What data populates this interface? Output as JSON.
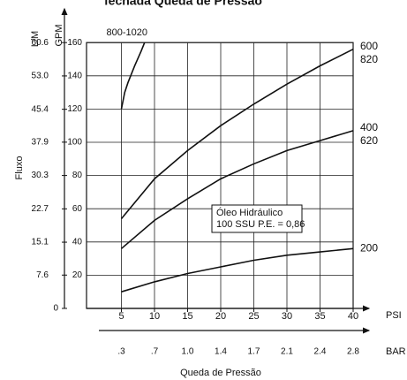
{
  "chart_data": {
    "type": "line",
    "title": "fechada Queda de Pressão",
    "y_label": "Fluxo",
    "y_unit": "GPM",
    "y2_unit": "L/M",
    "x_unit": "PSI",
    "x2_unit": "BAR",
    "x_label": "Queda de Pressão",
    "xlim": [
      0,
      40
    ],
    "xticks": [
      5,
      10,
      15,
      20,
      25,
      30,
      35,
      40
    ],
    "x2_labels": [
      ".3",
      ".7",
      "1.0",
      "1.4",
      "1.7",
      "2.1",
      "2.4",
      "2.8"
    ],
    "ylim": [
      0,
      160
    ],
    "yticks": [
      20,
      40,
      60,
      80,
      100,
      120,
      140,
      160
    ],
    "y2lim": [
      0,
      60.6
    ],
    "y2ticks": [
      0,
      7.6,
      15.1,
      22.7,
      30.3,
      37.9,
      45.4,
      {
        "value": 53,
        "label": "53.0"
      },
      60.6
    ],
    "grid": true,
    "annotation": [
      "Óleo Hidráulico",
      "100 SSU P.E. = 0,86"
    ],
    "series": [
      {
        "name": "800-1020",
        "color": "#111111",
        "x": [
          5,
          5.5,
          6,
          7,
          8,
          8.5
        ],
        "values": [
          120,
          130,
          136,
          146,
          155,
          160
        ]
      },
      {
        "labels": [
          "600",
          "820"
        ],
        "color": "#111111",
        "x": [
          5,
          10,
          15,
          20,
          25,
          30,
          35,
          40
        ],
        "values": [
          54,
          78,
          95,
          110,
          123,
          135,
          146,
          156
        ]
      },
      {
        "labels": [
          "400",
          "620"
        ],
        "color": "#111111",
        "x": [
          5,
          10,
          15,
          20,
          25,
          30,
          35,
          40
        ],
        "values": [
          36,
          53,
          66,
          78,
          87,
          95,
          101,
          107
        ]
      },
      {
        "name": "200",
        "color": "#111111",
        "x": [
          5,
          10,
          15,
          20,
          25,
          30,
          35,
          40
        ],
        "values": [
          10,
          16,
          21,
          25,
          29,
          32,
          34,
          36
        ]
      }
    ]
  }
}
